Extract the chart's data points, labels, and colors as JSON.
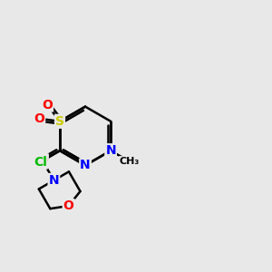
{
  "bg_color": "#e8e8e8",
  "atom_colors": {
    "C": "#000000",
    "N": "#0000ff",
    "O": "#ff0000",
    "S": "#cccc00",
    "Cl": "#00bb00"
  },
  "bond_color": "#000000",
  "figsize": [
    3.0,
    3.0
  ],
  "dpi": 100
}
